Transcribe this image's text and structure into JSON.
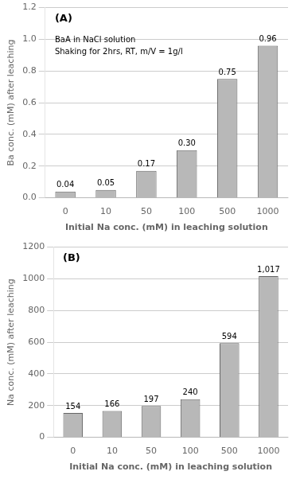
{
  "chart_data": [
    {
      "type": "bar",
      "title": "(A)",
      "annotation": "BaA in NaCl solution\nShaking for 2hrs, RT, m/V = 1g/l",
      "categories": [
        "0",
        "10",
        "50",
        "100",
        "500",
        "1000"
      ],
      "values": [
        0.04,
        0.05,
        0.17,
        0.3,
        0.75,
        0.96
      ],
      "value_labels": [
        "0.04",
        "0.05",
        "0.17",
        "0.30",
        "0.75",
        "0.96"
      ],
      "ylabel": "Ba conc. (mM) after leaching",
      "xlabel": "Initial Na conc. (mM) in leaching solution",
      "ylim": [
        0,
        1.2
      ],
      "yticks": [
        {
          "value": 0,
          "label": "0.0"
        },
        0.2,
        0.4,
        0.6,
        0.8,
        {
          "value": 1.0,
          "label": "1.0"
        },
        1.2
      ],
      "color": "#b8b8b8",
      "grid": true,
      "data_labels": true
    },
    {
      "type": "bar",
      "title": "(B)",
      "categories": [
        "0",
        "10",
        "50",
        "100",
        "500",
        "1000"
      ],
      "values": [
        154,
        166,
        197,
        240,
        594,
        1017
      ],
      "value_labels": [
        "154",
        "166",
        "197",
        "240",
        "594",
        "1,017"
      ],
      "ylabel": "Na conc. (mM) after leaching",
      "xlabel": "Initial Na conc. (mM) in leaching solution",
      "ylim": [
        0,
        1200
      ],
      "yticks": [
        0,
        200,
        400,
        600,
        800,
        1000,
        1200
      ],
      "color": "#b8b8b8",
      "grid": true,
      "data_labels": true
    }
  ]
}
